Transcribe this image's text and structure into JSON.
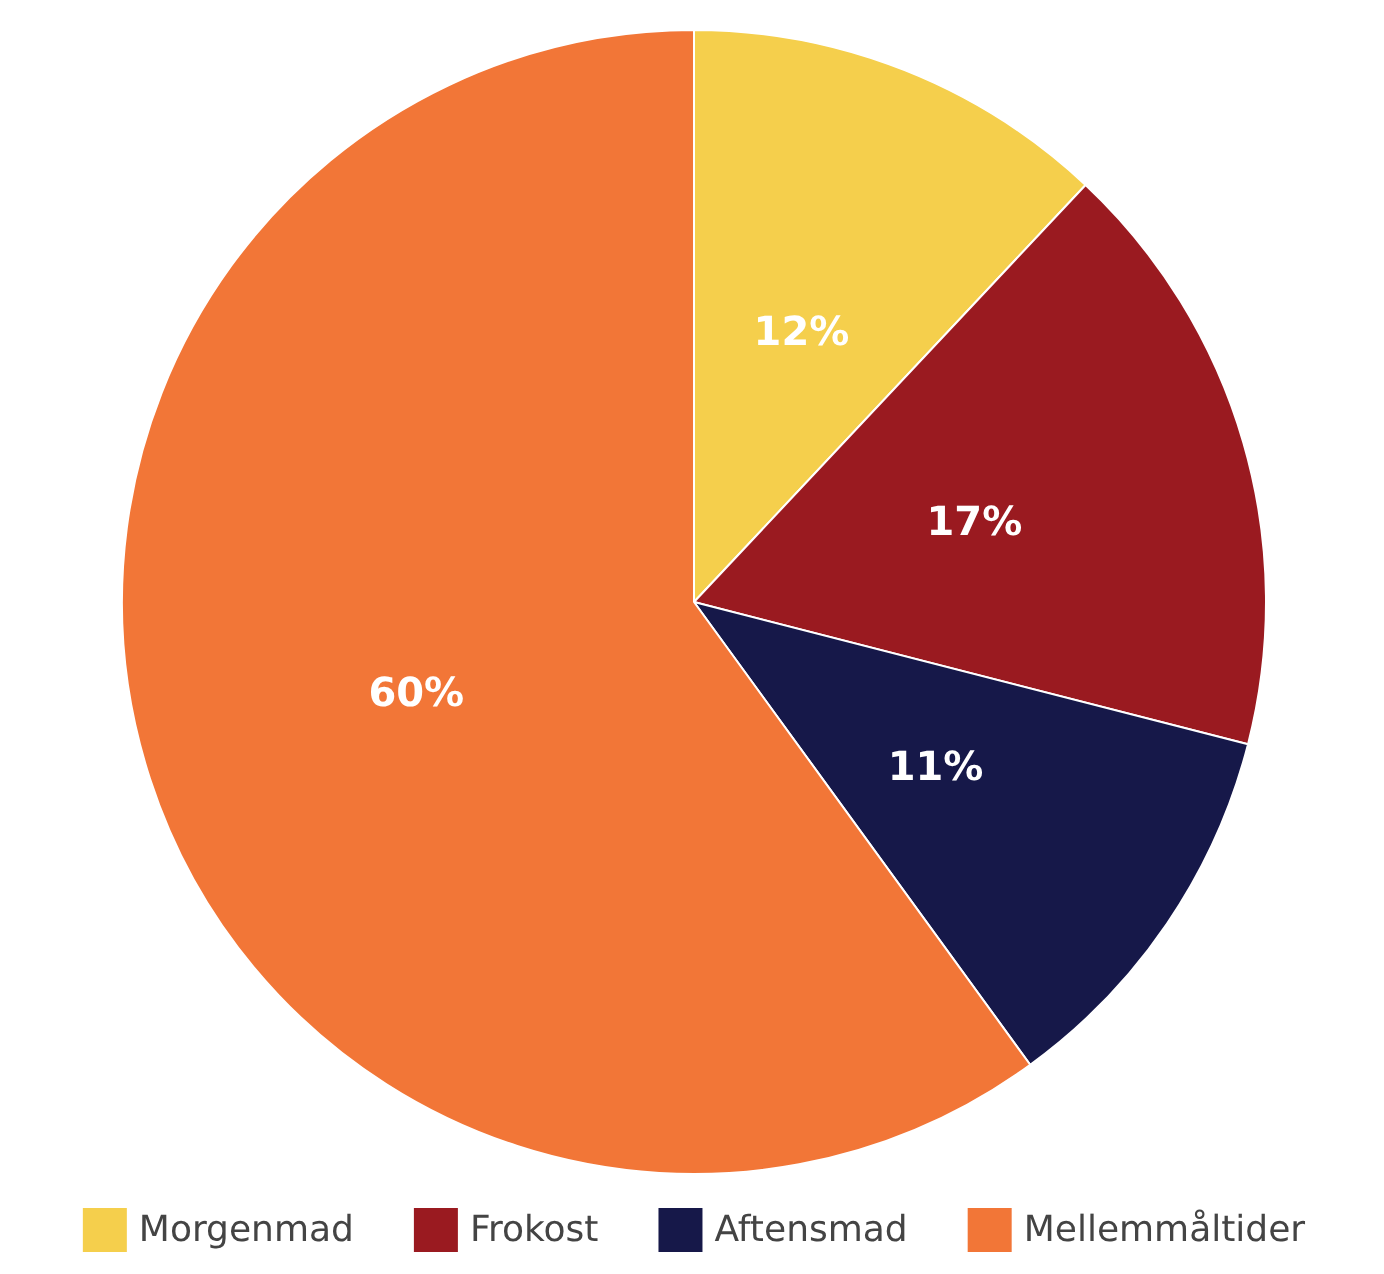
{
  "chart_data": {
    "type": "pie",
    "categories": [
      "Morgenmad",
      "Frokost",
      "Aftensmad",
      "Mellemmåltider"
    ],
    "values": [
      12,
      17,
      11,
      60
    ],
    "value_labels": [
      "12%",
      "17%",
      "11%",
      "60%"
    ],
    "colors": [
      "#f5cf4c",
      "#9a1a20",
      "#161849",
      "#f27637"
    ],
    "legend": "bottom"
  }
}
